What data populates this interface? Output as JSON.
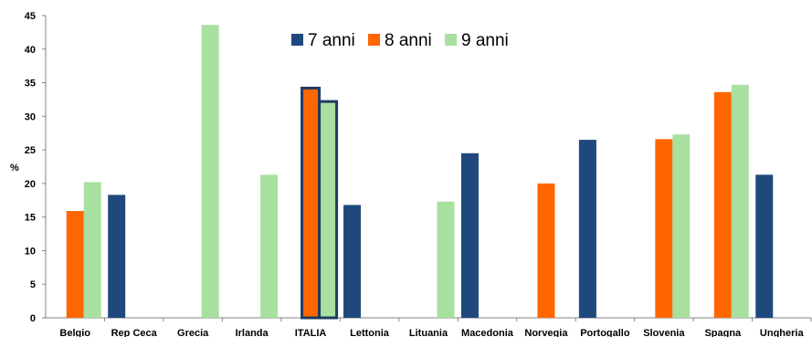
{
  "chart_data": {
    "type": "bar",
    "ylabel": "%",
    "ylim": [
      0,
      45
    ],
    "yticks": [
      0,
      5,
      10,
      15,
      20,
      25,
      30,
      35,
      40,
      45
    ],
    "grid": false,
    "legend_position": "top-center",
    "categories": [
      "Belgio",
      "Rep Ceca",
      "Grecia",
      "Irlanda",
      "ITALIA",
      "Lettonia",
      "Lituania",
      "Macedonia",
      "Norvegia",
      "Portogallo",
      "Slovenia",
      "Spagna",
      "Ungheria"
    ],
    "highlight_category": "ITALIA",
    "series": [
      {
        "name": "7 anni",
        "color": "#1f497d",
        "values": [
          null,
          18.3,
          null,
          null,
          null,
          16.8,
          null,
          24.5,
          null,
          26.5,
          null,
          null,
          21.3
        ]
      },
      {
        "name": "8 anni",
        "color": "#ff6600",
        "values": [
          15.9,
          null,
          null,
          null,
          34.2,
          null,
          null,
          null,
          20.0,
          null,
          26.6,
          33.6,
          null
        ]
      },
      {
        "name": "9 anni",
        "color": "#a8e0a0",
        "values": [
          20.2,
          null,
          43.6,
          21.3,
          32.2,
          null,
          17.3,
          null,
          null,
          null,
          27.3,
          34.7,
          null
        ]
      }
    ]
  }
}
